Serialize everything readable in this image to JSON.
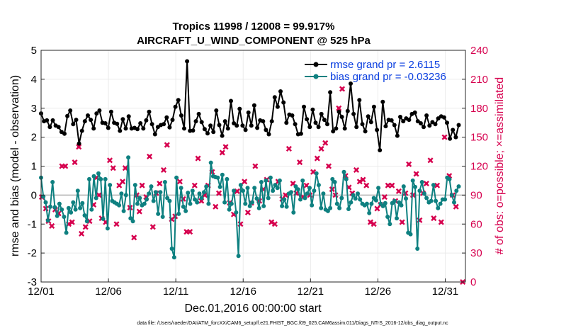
{
  "chart_data": {
    "type": "line",
    "title_line1": "Tropics 11998 / 12008 = 99.917%",
    "title_line2": "AIRCRAFT_U_WIND_COMPONENT @ 525 hPa",
    "xlabel": "Dec.01,2016 00:00:00 start",
    "ylabel_left": "rmse and bias (model - observation)",
    "ylabel_right": "# of obs: o=possible; ×=assimilated",
    "left_ylim": [
      -3,
      5
    ],
    "left_ticks": [
      "-3",
      "-2",
      "-1",
      "0",
      "1",
      "2",
      "3",
      "4",
      "5"
    ],
    "right_ylim": [
      0,
      240
    ],
    "right_ticks": [
      "0",
      "30",
      "60",
      "90",
      "120",
      "150",
      "180",
      "210",
      "240"
    ],
    "x_range": [
      0,
      31.5
    ],
    "x_ticks": [
      {
        "x": 0,
        "label": "12/01"
      },
      {
        "x": 5,
        "label": "12/06"
      },
      {
        "x": 10,
        "label": "12/11"
      },
      {
        "x": 15,
        "label": "12/16"
      },
      {
        "x": 20,
        "label": "12/21"
      },
      {
        "x": 25,
        "label": "12/26"
      },
      {
        "x": 30,
        "label": "12/31"
      }
    ],
    "legend": [
      {
        "name": "rmse grand pr = 2.6115",
        "color": "#000000"
      },
      {
        "name": "bias grand pr = -0.03236",
        "color": "#0e8080"
      }
    ],
    "colors": {
      "rmse": "#000000",
      "bias": "#0e8080",
      "obs": "#d6004e",
      "zero_line": "#b3b3b3"
    },
    "series": [
      {
        "name": "rmse",
        "values": [
          2.82,
          2.55,
          2.58,
          2.35,
          2.58,
          2.4,
          2.35,
          2.18,
          2.12,
          2.73,
          2.92,
          2.45,
          2.6,
          1.78,
          2.22,
          2.55,
          2.75,
          2.6,
          2.3,
          2.82,
          2.92,
          2.5,
          2.48,
          2.32,
          2.88,
          2.5,
          2.46,
          2.22,
          2.62,
          2.3,
          2.72,
          2.3,
          2.32,
          2.28,
          2.48,
          2.3,
          2.58,
          2.88,
          2.45,
          2.1,
          2.35,
          2.42,
          2.45,
          2.68,
          2.34,
          2.6,
          3.05,
          3.28,
          2.75,
          2.3,
          4.62,
          2.22,
          2.23,
          2.55,
          2.8,
          2.52,
          2.28,
          2.13,
          2.4,
          2.18,
          2.92,
          2.42,
          2.05,
          2.55,
          2.3,
          3.25,
          2.48,
          2.4,
          2.98,
          2.4,
          2.25,
          2.85,
          2.4,
          3.1,
          2.32,
          2.58,
          2.55,
          2.25,
          2.1,
          2.55,
          3.38,
          3.05,
          3.58,
          3.2,
          2.5,
          2.78,
          2.75,
          2.45,
          2.1,
          2.12,
          3.05,
          2.62,
          2.35,
          2.95,
          2.5,
          2.35,
          2.8,
          2.6,
          2.45,
          3.55,
          2.2,
          2.3,
          2.88,
          2.7,
          2.3,
          2.9,
          3.85,
          2.8,
          2.35,
          3.28,
          2.45,
          2.2,
          2.72,
          2.52,
          3.05,
          2.25,
          1.55,
          3.22,
          2.38,
          2.6,
          2.58,
          2.42,
          2.05,
          2.7,
          2.55,
          2.65,
          2.6,
          2.8,
          2.85,
          2.55,
          2.48,
          2.35,
          2.75,
          2.4,
          2.52,
          2.45,
          2.65,
          2.72,
          2.68,
          2.5,
          1.95,
          2.25,
          2.0,
          2.42
        ]
      },
      {
        "name": "bias",
        "values": [
          0.6,
          -0.05,
          -0.25,
          -0.88,
          -0.4,
          0.45,
          -0.42,
          -0.72,
          -0.3,
          -0.5,
          -0.75,
          -1.3,
          -0.45,
          -0.6,
          -0.25,
          -0.5,
          0.15,
          -0.45,
          -0.28,
          -0.7,
          -0.9,
          0.55,
          -0.5,
          0.65,
          -0.1,
          0.75,
          0.55,
          -0.82,
          0.55,
          -1.15,
          0.35,
          -0.2,
          -0.25,
          -0.3,
          -0.35,
          0.05,
          -0.55,
          0.0,
          1.3,
          -0.8,
          -0.9,
          0.35,
          -0.3,
          -0.1,
          -0.35,
          -0.3,
          -0.15,
          0.05,
          0.3,
          -0.2,
          0.1,
          -0.65,
          0.1,
          -0.75,
          0.45,
          -0.1,
          -0.2,
          -1.85,
          -2.15,
          0.6,
          -0.65,
          0.25,
          -0.4,
          -0.55,
          0.08,
          -0.3,
          0.15,
          -0.15,
          -0.25,
          0.05,
          -0.1,
          0.1,
          0.3,
          -0.3,
          1.12,
          0.65,
          0.62,
          0.6,
          0.28,
          0.7,
          -0.25,
          0.55,
          -0.5,
          -0.3,
          0.15,
          -0.6,
          -2.1,
          0.35,
          0.15,
          -0.3,
          0.25,
          -0.38,
          -0.25,
          0.25,
          -0.12,
          -0.45,
          0.45,
          -0.38,
          0.5,
          -0.1,
          0.6,
          0.15,
          0.35,
          0.25,
          0.5,
          -0.38,
          -0.15,
          -0.4,
          0.05,
          0.1,
          -0.6,
          0.3,
          0.2,
          -0.15,
          0.5,
          -0.1,
          0.05,
          0.25,
          -0.35,
          0.15,
          0.75,
          0.35,
          -0.45,
          0.05,
          -0.5,
          -0.55,
          -0.45,
          0.55,
          0.45,
          -0.3,
          -0.45,
          -0.1,
          0.8,
          0.55,
          -0.48,
          -0.25,
          0.0,
          -0.12,
          0.05,
          -0.15,
          -0.3,
          -0.35,
          -0.3,
          -0.62,
          -0.3,
          -0.1,
          -0.18,
          0.25,
          -0.3,
          -0.38,
          -0.28,
          -0.75,
          -1.0,
          -0.28,
          -0.2,
          -0.8,
          -0.25,
          -0.35,
          0.3,
          -0.12,
          -1.3,
          -1.35,
          0.5,
          0.28,
          -1.85,
          0.15,
          0.45,
          0.05,
          -0.1,
          -0.25,
          -0.2,
          0.35,
          -0.2,
          -0.45,
          -0.3,
          -0.15,
          -0.15,
          0.6,
          0.55,
          0.0,
          -0.25,
          0.15,
          0.3
        ]
      }
    ],
    "obs_assimilated": [
      [
        0.05,
        88
      ],
      [
        0.35,
        76
      ],
      [
        0.55,
        63
      ],
      [
        0.8,
        58
      ],
      [
        1.05,
        75
      ],
      [
        1.3,
        71
      ],
      [
        1.55,
        120
      ],
      [
        1.8,
        120
      ],
      [
        2.05,
        60
      ],
      [
        2.3,
        62
      ],
      [
        2.5,
        124
      ],
      [
        2.8,
        140
      ],
      [
        3.0,
        50
      ],
      [
        3.3,
        57
      ],
      [
        3.6,
        63
      ],
      [
        3.9,
        80
      ],
      [
        4.1,
        108
      ],
      [
        4.3,
        90
      ],
      [
        4.5,
        66
      ],
      [
        4.8,
        62
      ],
      [
        5.1,
        126
      ],
      [
        5.35,
        118
      ],
      [
        5.6,
        60
      ],
      [
        5.8,
        100
      ],
      [
        6.05,
        104
      ],
      [
        6.25,
        118
      ],
      [
        6.6,
        77
      ],
      [
        6.9,
        46
      ],
      [
        7.1,
        90
      ],
      [
        7.3,
        73
      ],
      [
        7.5,
        100
      ],
      [
        7.8,
        88
      ],
      [
        8.05,
        130
      ],
      [
        8.3,
        57
      ],
      [
        8.55,
        92
      ],
      [
        8.8,
        102
      ],
      [
        9.1,
        116
      ],
      [
        9.35,
        142
      ],
      [
        9.7,
        65
      ],
      [
        9.95,
        68
      ],
      [
        10.3,
        104
      ],
      [
        10.55,
        86
      ],
      [
        10.8,
        52
      ],
      [
        11.05,
        52
      ],
      [
        11.4,
        100
      ],
      [
        11.65,
        128
      ],
      [
        11.9,
        84
      ],
      [
        12.15,
        90
      ],
      [
        12.4,
        100
      ],
      [
        12.7,
        114
      ],
      [
        12.95,
        78
      ],
      [
        13.2,
        92
      ],
      [
        13.45,
        134
      ],
      [
        13.7,
        140
      ],
      [
        14.0,
        82
      ],
      [
        14.3,
        70
      ],
      [
        14.55,
        94
      ],
      [
        14.8,
        60
      ],
      [
        15.1,
        104
      ],
      [
        15.35,
        72
      ],
      [
        15.6,
        82
      ],
      [
        15.9,
        120
      ],
      [
        16.2,
        84
      ],
      [
        16.5,
        96
      ],
      [
        16.75,
        106
      ],
      [
        17.1,
        62
      ],
      [
        17.35,
        60
      ],
      [
        17.6,
        104
      ],
      [
        17.9,
        86
      ],
      [
        18.15,
        90
      ],
      [
        18.4,
        138
      ],
      [
        18.7,
        102
      ],
      [
        18.95,
        92
      ],
      [
        19.2,
        124
      ],
      [
        19.45,
        88
      ],
      [
        19.7,
        100
      ],
      [
        19.95,
        90
      ],
      [
        20.2,
        114
      ],
      [
        20.5,
        128
      ],
      [
        20.8,
        138
      ],
      [
        21.1,
        144
      ],
      [
        21.35,
        120
      ],
      [
        21.6,
        96
      ],
      [
        21.85,
        90
      ],
      [
        22.1,
        180
      ],
      [
        22.35,
        200
      ],
      [
        22.6,
        110
      ],
      [
        22.85,
        98
      ],
      [
        23.1,
        92
      ],
      [
        23.4,
        116
      ],
      [
        23.65,
        104
      ],
      [
        23.9,
        106
      ],
      [
        24.15,
        100
      ],
      [
        24.45,
        62
      ],
      [
        24.7,
        60
      ],
      [
        24.95,
        76
      ],
      [
        25.2,
        80
      ],
      [
        25.5,
        88
      ],
      [
        25.75,
        100
      ],
      [
        26.05,
        100
      ],
      [
        26.3,
        84
      ],
      [
        26.55,
        94
      ],
      [
        26.8,
        62
      ],
      [
        27.05,
        92
      ],
      [
        27.3,
        122
      ],
      [
        27.6,
        90
      ],
      [
        27.85,
        112
      ],
      [
        28.1,
        64
      ],
      [
        28.35,
        92
      ],
      [
        28.6,
        102
      ],
      [
        28.9,
        126
      ],
      [
        29.15,
        66
      ],
      [
        29.4,
        100
      ],
      [
        29.7,
        62
      ],
      [
        29.95,
        150
      ],
      [
        30.3,
        110
      ],
      [
        30.55,
        90
      ],
      [
        30.8,
        78
      ],
      [
        31.3,
        0
      ]
    ]
  },
  "footnote": "data file: /Users/raeder/DAI/ATM_forcXX/CAM6_setup/f.e21.FHIST_BGC.f09_025.CAM6assim.011/Diags_NTrS_2016-12/obs_diag_output.nc"
}
